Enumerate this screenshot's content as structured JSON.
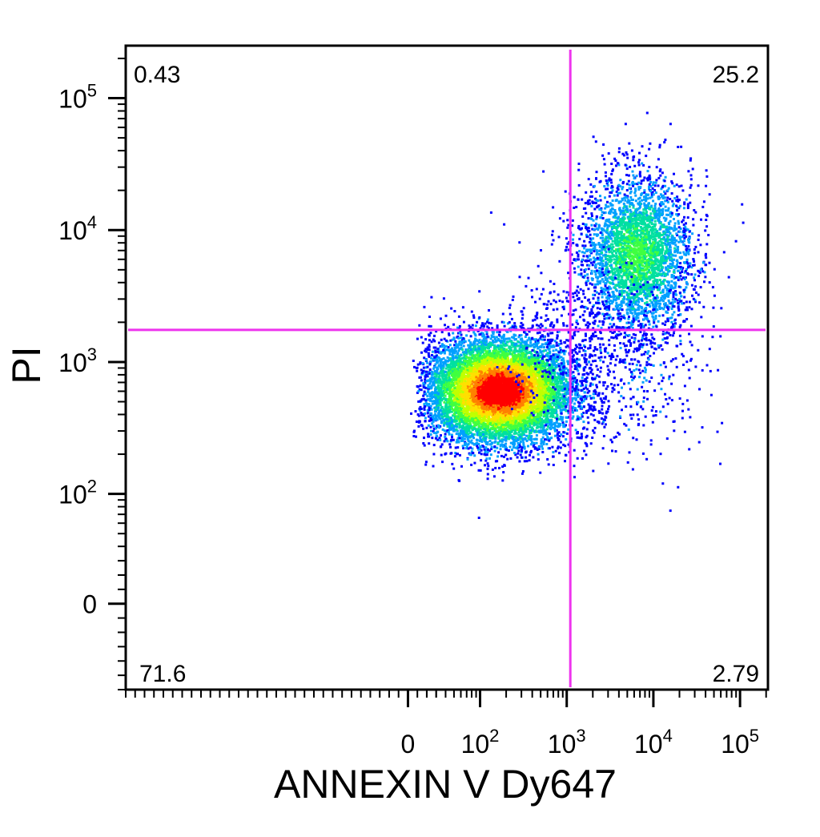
{
  "chart_data": {
    "type": "scatter",
    "subtype": "flow-cytometry-pseudocolor-density-plot",
    "xlabel": "ANNEXIN V Dy647",
    "ylabel": "PI",
    "x_scale": "biexponential",
    "y_scale": "biexponential",
    "x_range": [
      -300,
      210000
    ],
    "y_range": [
      -60,
      250000
    ],
    "x_ticks": [
      {
        "value": 0,
        "base": "0",
        "exp": ""
      },
      {
        "value": 100,
        "base": "10",
        "exp": "2"
      },
      {
        "value": 1000,
        "base": "10",
        "exp": "3"
      },
      {
        "value": 10000,
        "base": "10",
        "exp": "4"
      },
      {
        "value": 100000,
        "base": "10",
        "exp": "5"
      }
    ],
    "y_ticks": [
      {
        "value": 0,
        "base": "0",
        "exp": ""
      },
      {
        "value": 100,
        "base": "10",
        "exp": "2"
      },
      {
        "value": 1000,
        "base": "10",
        "exp": "3"
      },
      {
        "value": 10000,
        "base": "10",
        "exp": "4"
      },
      {
        "value": 100000,
        "base": "10",
        "exp": "5"
      }
    ],
    "quadrant_gate": {
      "x": 1100,
      "y": 1750,
      "color": "#ee33ee"
    },
    "quadrant_percentages": {
      "upper_left": "0.43",
      "upper_right": "25.2",
      "lower_left": "71.6",
      "lower_right": "2.79"
    },
    "populations": [
      {
        "name": "",
        "center_x": 170,
        "center_y": 600,
        "spread_x_decades": 0.42,
        "spread_y_decades": 0.2,
        "events": 9000
      },
      {
        "name": "",
        "center_x": 6500,
        "center_y": 6500,
        "spread_x_decades": 0.32,
        "spread_y_decades": 0.3,
        "events": 3300
      },
      {
        "name": "",
        "center_x": 5000,
        "center_y": 900,
        "spread_x_decades": 0.45,
        "spread_y_decades": 0.35,
        "events": 420
      },
      {
        "name": "",
        "center_x": 900,
        "center_y": 1500,
        "spread_x_decades": 0.35,
        "spread_y_decades": 0.3,
        "events": 260
      }
    ],
    "density_colors": [
      "#0000ff",
      "#00a0ff",
      "#00e0a0",
      "#40ff40",
      "#c0ff00",
      "#ffe000",
      "#ff8000",
      "#ff0000"
    ],
    "grid": false,
    "legend": "none"
  }
}
